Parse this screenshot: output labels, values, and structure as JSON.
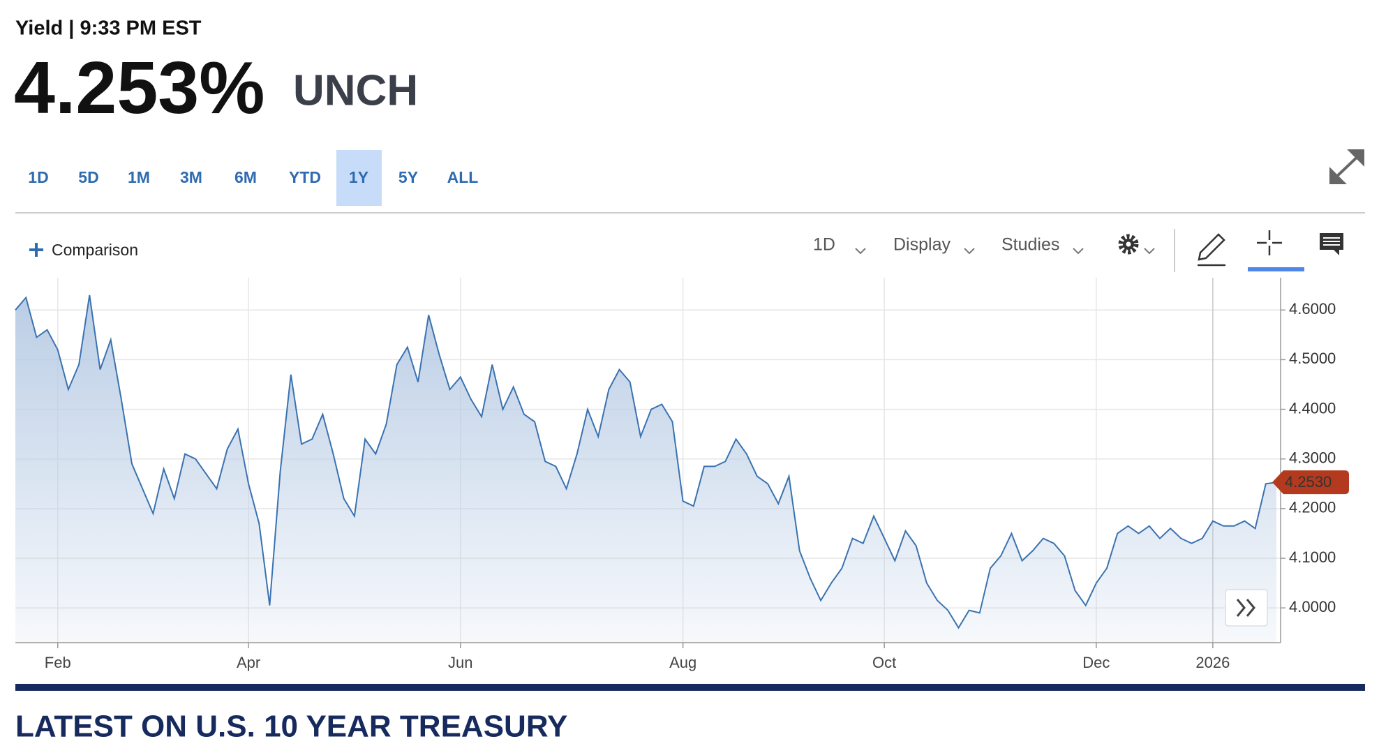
{
  "header": {
    "title": "Yield | 9:33 PM EST",
    "price": "4.253%",
    "change": "UNCH"
  },
  "ranges": [
    "1D",
    "5D",
    "1M",
    "3M",
    "6M",
    "YTD",
    "1Y",
    "5Y",
    "ALL"
  ],
  "selected_range_index": 6,
  "toolbar": {
    "comparison": "Comparison",
    "interval": "1D",
    "display": "Display",
    "studies": "Studies"
  },
  "chart_data": {
    "type": "area",
    "color": "#3a72b0",
    "fill_color": "#b7cbe4",
    "grid": true,
    "y_axis_side": "right",
    "ylim": [
      3.93,
      4.665
    ],
    "yticks": [
      {
        "value": 4.0,
        "label": "4.0000"
      },
      {
        "value": 4.1,
        "label": "4.1000"
      },
      {
        "value": 4.2,
        "label": "4.2000"
      },
      {
        "value": 4.3,
        "label": "4.3000"
      },
      {
        "value": 4.4,
        "label": "4.4000"
      },
      {
        "value": 4.5,
        "label": "4.5000"
      },
      {
        "value": 4.6,
        "label": "4.6000"
      }
    ],
    "categories": [
      null,
      null,
      null,
      null,
      "Feb",
      null,
      null,
      null,
      null,
      null,
      null,
      null,
      null,
      null,
      null,
      null,
      null,
      null,
      null,
      null,
      null,
      null,
      "Apr",
      null,
      null,
      null,
      null,
      null,
      null,
      null,
      null,
      null,
      null,
      null,
      null,
      null,
      null,
      null,
      null,
      null,
      null,
      null,
      "Jun",
      null,
      null,
      null,
      null,
      null,
      null,
      null,
      null,
      null,
      null,
      null,
      null,
      null,
      null,
      null,
      null,
      null,
      null,
      null,
      null,
      "Aug",
      null,
      null,
      null,
      null,
      null,
      null,
      null,
      null,
      null,
      null,
      null,
      null,
      null,
      null,
      null,
      null,
      null,
      null,
      "Oct",
      null,
      null,
      null,
      null,
      null,
      null,
      null,
      null,
      null,
      null,
      null,
      null,
      null,
      null,
      null,
      null,
      null,
      null,
      null,
      "Dec",
      null,
      null,
      null,
      null,
      null,
      null,
      null,
      null,
      null,
      null,
      "2026",
      null,
      null,
      null,
      null,
      null,
      null
    ],
    "values": [
      4.6,
      4.625,
      4.545,
      4.56,
      4.52,
      4.44,
      4.49,
      4.63,
      4.48,
      4.54,
      4.42,
      4.29,
      4.24,
      4.19,
      4.28,
      4.22,
      4.31,
      4.3,
      4.27,
      4.24,
      4.32,
      4.36,
      4.25,
      4.17,
      4.005,
      4.275,
      4.47,
      4.33,
      4.34,
      4.39,
      4.31,
      4.22,
      4.185,
      4.34,
      4.31,
      4.37,
      4.49,
      4.525,
      4.455,
      4.59,
      4.51,
      4.44,
      4.465,
      4.42,
      4.385,
      4.49,
      4.4,
      4.445,
      4.39,
      4.375,
      4.295,
      4.285,
      4.24,
      4.31,
      4.4,
      4.345,
      4.44,
      4.48,
      4.455,
      4.345,
      4.4,
      4.41,
      4.375,
      4.215,
      4.205,
      4.285,
      4.285,
      4.295,
      4.34,
      4.31,
      4.265,
      4.25,
      4.21,
      4.265,
      4.115,
      4.06,
      4.015,
      4.05,
      4.08,
      4.14,
      4.13,
      4.185,
      4.14,
      4.095,
      4.155,
      4.125,
      4.05,
      4.015,
      3.995,
      3.96,
      3.995,
      3.99,
      4.08,
      4.105,
      4.15,
      4.095,
      4.115,
      4.14,
      4.13,
      4.105,
      4.035,
      4.005,
      4.05,
      4.08,
      4.15,
      4.165,
      4.15,
      4.165,
      4.14,
      4.16,
      4.14,
      4.13,
      4.14,
      4.175,
      4.165,
      4.165,
      4.175,
      4.16,
      4.25,
      4.253
    ],
    "marker": {
      "value": 4.253,
      "label": "4.2530",
      "color": "#b33a1e"
    }
  },
  "section_title": "LATEST ON U.S. 10 YEAR TREASURY"
}
